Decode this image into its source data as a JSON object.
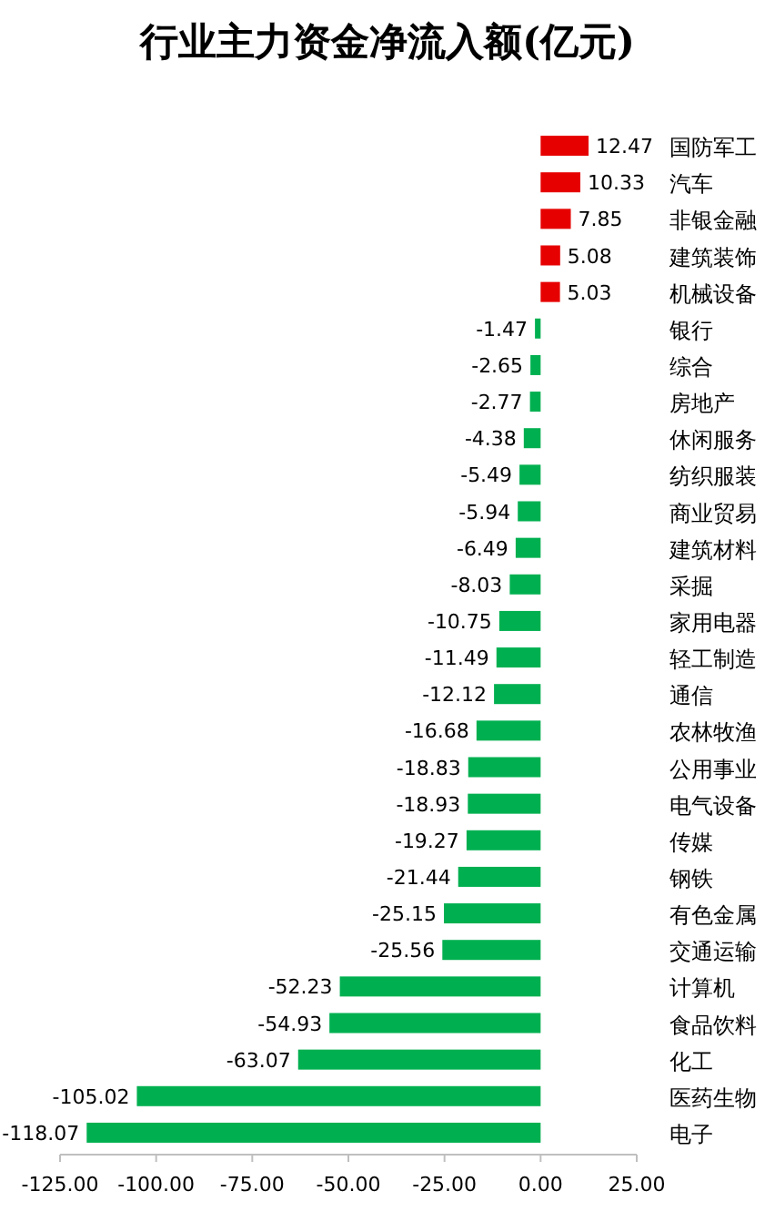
{
  "chart_data": {
    "type": "bar",
    "orientation": "horizontal",
    "title": "行业主力资金净流入额(亿元)",
    "categories": [
      "国防军工",
      "汽车",
      "非银金融",
      "建筑装饰",
      "机械设备",
      "银行",
      "综合",
      "房地产",
      "休闲服务",
      "纺织服装",
      "商业贸易",
      "建筑材料",
      "采掘",
      "家用电器",
      "轻工制造",
      "通信",
      "农林牧渔",
      "公用事业",
      "电气设备",
      "传媒",
      "钢铁",
      "有色金属",
      "交通运输",
      "计算机",
      "食品饮料",
      "化工",
      "医药生物",
      "电子"
    ],
    "values": [
      12.47,
      10.33,
      7.85,
      5.08,
      5.03,
      -1.47,
      -2.65,
      -2.77,
      -4.38,
      -5.49,
      -5.94,
      -6.49,
      -8.03,
      -10.75,
      -11.49,
      -12.12,
      -16.68,
      -18.83,
      -18.93,
      -19.27,
      -21.44,
      -25.15,
      -25.56,
      -52.23,
      -54.93,
      -63.07,
      -105.02,
      -118.07
    ],
    "colors": [
      "#e60000",
      "#e60000",
      "#e60000",
      "#e60000",
      "#e60000",
      "#00b050",
      "#00b050",
      "#00b050",
      "#00b050",
      "#00b050",
      "#00b050",
      "#00b050",
      "#00b050",
      "#00b050",
      "#00b050",
      "#00b050",
      "#00b050",
      "#00b050",
      "#00b050",
      "#00b050",
      "#00b050",
      "#00b050",
      "#00b050",
      "#00b050",
      "#00b050",
      "#00b050",
      "#00b050",
      "#00b050"
    ],
    "xlim": [
      -125,
      25
    ],
    "xticks": [
      {
        "value": -125,
        "label": "-125.00"
      },
      {
        "value": -100,
        "label": "-100.00"
      },
      {
        "value": -75,
        "label": "-75.00"
      },
      {
        "value": -50,
        "label": "-50.00"
      },
      {
        "value": -25,
        "label": "-25.00"
      },
      {
        "value": 0,
        "label": "0.00"
      },
      {
        "value": 25,
        "label": "25.00"
      }
    ],
    "data_labels": true
  }
}
